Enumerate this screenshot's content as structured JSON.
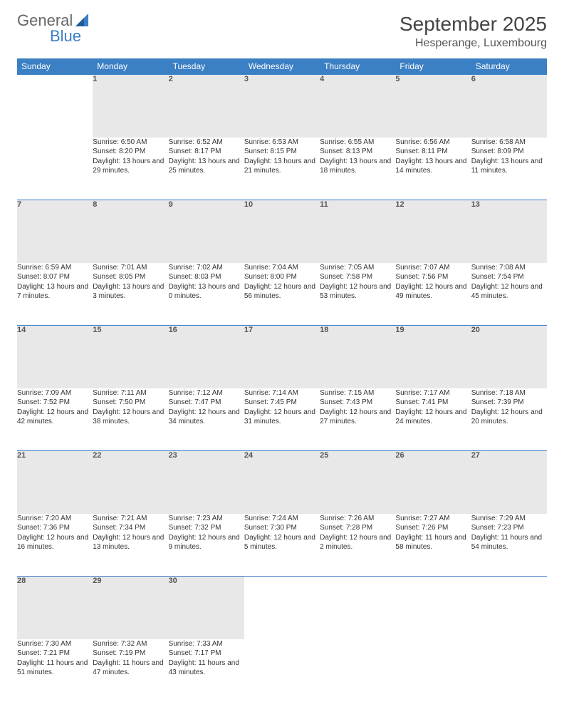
{
  "logo": {
    "text1": "General",
    "text2": "Blue"
  },
  "title": "September 2025",
  "location": "Hesperange, Luxembourg",
  "colors": {
    "header_bg": "#3b7fc4",
    "header_text": "#ffffff",
    "daynum_bg": "#e8e8e8",
    "row_border": "#3b7fc4",
    "logo_blue": "#3b7fc4"
  },
  "weekdays": [
    "Sunday",
    "Monday",
    "Tuesday",
    "Wednesday",
    "Thursday",
    "Friday",
    "Saturday"
  ],
  "weeks": [
    [
      null,
      {
        "n": "1",
        "sr": "Sunrise: 6:50 AM",
        "ss": "Sunset: 8:20 PM",
        "dl": "Daylight: 13 hours and 29 minutes."
      },
      {
        "n": "2",
        "sr": "Sunrise: 6:52 AM",
        "ss": "Sunset: 8:17 PM",
        "dl": "Daylight: 13 hours and 25 minutes."
      },
      {
        "n": "3",
        "sr": "Sunrise: 6:53 AM",
        "ss": "Sunset: 8:15 PM",
        "dl": "Daylight: 13 hours and 21 minutes."
      },
      {
        "n": "4",
        "sr": "Sunrise: 6:55 AM",
        "ss": "Sunset: 8:13 PM",
        "dl": "Daylight: 13 hours and 18 minutes."
      },
      {
        "n": "5",
        "sr": "Sunrise: 6:56 AM",
        "ss": "Sunset: 8:11 PM",
        "dl": "Daylight: 13 hours and 14 minutes."
      },
      {
        "n": "6",
        "sr": "Sunrise: 6:58 AM",
        "ss": "Sunset: 8:09 PM",
        "dl": "Daylight: 13 hours and 11 minutes."
      }
    ],
    [
      {
        "n": "7",
        "sr": "Sunrise: 6:59 AM",
        "ss": "Sunset: 8:07 PM",
        "dl": "Daylight: 13 hours and 7 minutes."
      },
      {
        "n": "8",
        "sr": "Sunrise: 7:01 AM",
        "ss": "Sunset: 8:05 PM",
        "dl": "Daylight: 13 hours and 3 minutes."
      },
      {
        "n": "9",
        "sr": "Sunrise: 7:02 AM",
        "ss": "Sunset: 8:03 PM",
        "dl": "Daylight: 13 hours and 0 minutes."
      },
      {
        "n": "10",
        "sr": "Sunrise: 7:04 AM",
        "ss": "Sunset: 8:00 PM",
        "dl": "Daylight: 12 hours and 56 minutes."
      },
      {
        "n": "11",
        "sr": "Sunrise: 7:05 AM",
        "ss": "Sunset: 7:58 PM",
        "dl": "Daylight: 12 hours and 53 minutes."
      },
      {
        "n": "12",
        "sr": "Sunrise: 7:07 AM",
        "ss": "Sunset: 7:56 PM",
        "dl": "Daylight: 12 hours and 49 minutes."
      },
      {
        "n": "13",
        "sr": "Sunrise: 7:08 AM",
        "ss": "Sunset: 7:54 PM",
        "dl": "Daylight: 12 hours and 45 minutes."
      }
    ],
    [
      {
        "n": "14",
        "sr": "Sunrise: 7:09 AM",
        "ss": "Sunset: 7:52 PM",
        "dl": "Daylight: 12 hours and 42 minutes."
      },
      {
        "n": "15",
        "sr": "Sunrise: 7:11 AM",
        "ss": "Sunset: 7:50 PM",
        "dl": "Daylight: 12 hours and 38 minutes."
      },
      {
        "n": "16",
        "sr": "Sunrise: 7:12 AM",
        "ss": "Sunset: 7:47 PM",
        "dl": "Daylight: 12 hours and 34 minutes."
      },
      {
        "n": "17",
        "sr": "Sunrise: 7:14 AM",
        "ss": "Sunset: 7:45 PM",
        "dl": "Daylight: 12 hours and 31 minutes."
      },
      {
        "n": "18",
        "sr": "Sunrise: 7:15 AM",
        "ss": "Sunset: 7:43 PM",
        "dl": "Daylight: 12 hours and 27 minutes."
      },
      {
        "n": "19",
        "sr": "Sunrise: 7:17 AM",
        "ss": "Sunset: 7:41 PM",
        "dl": "Daylight: 12 hours and 24 minutes."
      },
      {
        "n": "20",
        "sr": "Sunrise: 7:18 AM",
        "ss": "Sunset: 7:39 PM",
        "dl": "Daylight: 12 hours and 20 minutes."
      }
    ],
    [
      {
        "n": "21",
        "sr": "Sunrise: 7:20 AM",
        "ss": "Sunset: 7:36 PM",
        "dl": "Daylight: 12 hours and 16 minutes."
      },
      {
        "n": "22",
        "sr": "Sunrise: 7:21 AM",
        "ss": "Sunset: 7:34 PM",
        "dl": "Daylight: 12 hours and 13 minutes."
      },
      {
        "n": "23",
        "sr": "Sunrise: 7:23 AM",
        "ss": "Sunset: 7:32 PM",
        "dl": "Daylight: 12 hours and 9 minutes."
      },
      {
        "n": "24",
        "sr": "Sunrise: 7:24 AM",
        "ss": "Sunset: 7:30 PM",
        "dl": "Daylight: 12 hours and 5 minutes."
      },
      {
        "n": "25",
        "sr": "Sunrise: 7:26 AM",
        "ss": "Sunset: 7:28 PM",
        "dl": "Daylight: 12 hours and 2 minutes."
      },
      {
        "n": "26",
        "sr": "Sunrise: 7:27 AM",
        "ss": "Sunset: 7:26 PM",
        "dl": "Daylight: 11 hours and 58 minutes."
      },
      {
        "n": "27",
        "sr": "Sunrise: 7:29 AM",
        "ss": "Sunset: 7:23 PM",
        "dl": "Daylight: 11 hours and 54 minutes."
      }
    ],
    [
      {
        "n": "28",
        "sr": "Sunrise: 7:30 AM",
        "ss": "Sunset: 7:21 PM",
        "dl": "Daylight: 11 hours and 51 minutes."
      },
      {
        "n": "29",
        "sr": "Sunrise: 7:32 AM",
        "ss": "Sunset: 7:19 PM",
        "dl": "Daylight: 11 hours and 47 minutes."
      },
      {
        "n": "30",
        "sr": "Sunrise: 7:33 AM",
        "ss": "Sunset: 7:17 PM",
        "dl": "Daylight: 11 hours and 43 minutes."
      },
      null,
      null,
      null,
      null
    ]
  ]
}
